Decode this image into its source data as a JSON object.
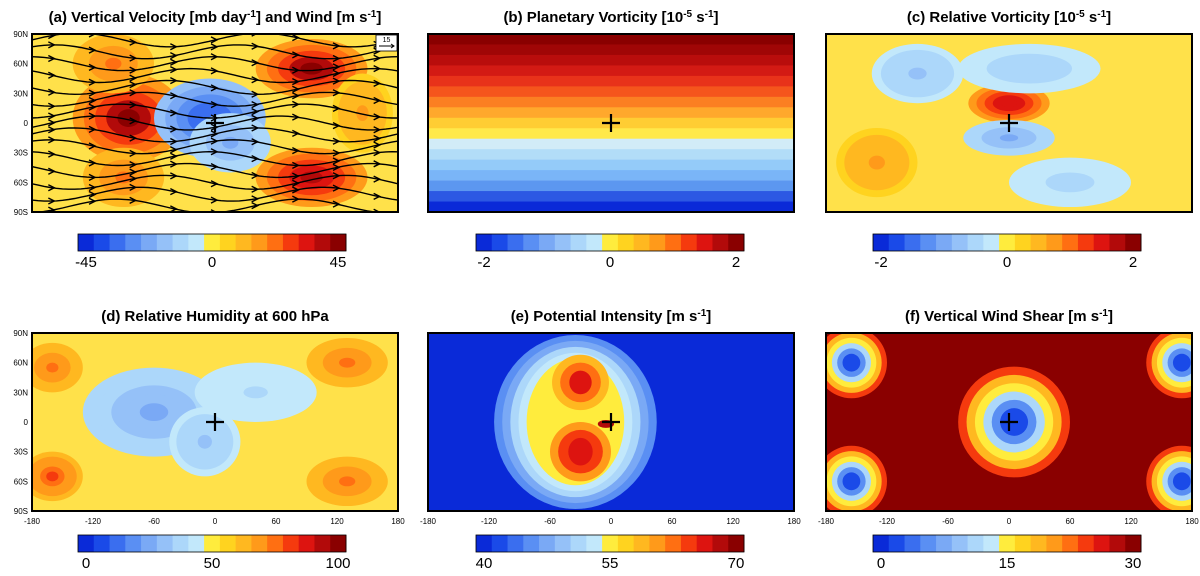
{
  "chart_data": [
    {
      "type": "heatmap",
      "panel": "a",
      "title_parts": [
        "(a) Vertical Velocity [mb day",
        "-1",
        "] and Wind [m s",
        "-1",
        "]"
      ],
      "xlim": [
        -180,
        180
      ],
      "ylim": [
        -90,
        90
      ],
      "colorbar": {
        "min": -45,
        "max": 45,
        "labels": [
          "-45",
          "0",
          "45"
        ]
      },
      "y_tick_labels": [
        "90N",
        "60N",
        "30N",
        "0",
        "30S",
        "60S",
        "90S"
      ],
      "vector_key": "15",
      "overlay": "streamlines",
      "marker": {
        "x": 0,
        "y": 0,
        "symbol": "+"
      }
    },
    {
      "type": "heatmap",
      "panel": "b",
      "title_parts": [
        "(b) Planetary Vorticity [10",
        "-5",
        " s",
        "-1",
        "]"
      ],
      "xlim": [
        -180,
        180
      ],
      "ylim": [
        -90,
        90
      ],
      "colorbar": {
        "min": -2,
        "max": 2,
        "labels": [
          "-2",
          "0",
          "2"
        ]
      },
      "marker": {
        "x": 0,
        "y": 0,
        "symbol": "+"
      }
    },
    {
      "type": "heatmap",
      "panel": "c",
      "title_parts": [
        "(c) Relative Vorticity [10",
        "-5",
        " s",
        "-1",
        "]"
      ],
      "xlim": [
        -180,
        180
      ],
      "ylim": [
        -90,
        90
      ],
      "colorbar": {
        "min": -2,
        "max": 2,
        "labels": [
          "-2",
          "0",
          "2"
        ]
      },
      "marker": {
        "x": 0,
        "y": 0,
        "symbol": "+"
      }
    },
    {
      "type": "heatmap",
      "panel": "d",
      "title_parts": [
        "(d) Relative Humidity at 600 hPa"
      ],
      "xlim": [
        -180,
        180
      ],
      "ylim": [
        -90,
        90
      ],
      "colorbar": {
        "min": 0,
        "max": 100,
        "labels": [
          "0",
          "50",
          "100"
        ]
      },
      "y_tick_labels": [
        "90N",
        "60N",
        "30N",
        "0",
        "30S",
        "60S",
        "90S"
      ],
      "x_tick_labels": [
        "-180",
        "-120",
        "-60",
        "0",
        "60",
        "120",
        "180"
      ],
      "marker": {
        "x": 0,
        "y": 0,
        "symbol": "+"
      }
    },
    {
      "type": "heatmap",
      "panel": "e",
      "title_parts": [
        "(e) Potential Intensity [m s",
        "-1",
        "]"
      ],
      "xlim": [
        -180,
        180
      ],
      "ylim": [
        -90,
        90
      ],
      "colorbar": {
        "min": 40,
        "max": 70,
        "labels": [
          "40",
          "55",
          "70"
        ]
      },
      "x_tick_labels": [
        "-180",
        "-120",
        "-60",
        "0",
        "60",
        "120",
        "180"
      ],
      "marker": {
        "x": 0,
        "y": 0,
        "symbol": "+"
      }
    },
    {
      "type": "heatmap",
      "panel": "f",
      "title_parts": [
        "(f) Vertical Wind Shear [m s",
        "-1",
        "]"
      ],
      "xlim": [
        -180,
        180
      ],
      "ylim": [
        -90,
        90
      ],
      "colorbar": {
        "min": 0,
        "max": 30,
        "labels": [
          "0",
          "15",
          "30"
        ]
      },
      "x_tick_labels": [
        "-180",
        "-120",
        "-60",
        "0",
        "60",
        "120",
        "180"
      ],
      "marker": {
        "x": 0,
        "y": 0,
        "symbol": "+"
      }
    }
  ],
  "colors": {
    "palette": [
      "#0a2ad8",
      "#1a4ae8",
      "#3a6eef",
      "#5a8ff3",
      "#7aa9f5",
      "#95c1f8",
      "#acd7fa",
      "#c2e8fb",
      "#ffec3d",
      "#ffd31f",
      "#ffb820",
      "#ff9a1a",
      "#ff6f12",
      "#f53a0e",
      "#dd1410",
      "#b20a0a",
      "#8a0000"
    ],
    "panel_b_bands": [
      "#8a0000",
      "#a00606",
      "#b90d0c",
      "#d31a14",
      "#e8321a",
      "#f5551c",
      "#fb7f22",
      "#ffa82c",
      "#ffcd33",
      "#ffe94a",
      "#d2ecf7",
      "#b2ddf8",
      "#94cbf9",
      "#7ab5f7",
      "#5c97f0",
      "#2c58e3",
      "#0a2ad8"
    ],
    "contour_fill_default": "#ffe14a"
  }
}
